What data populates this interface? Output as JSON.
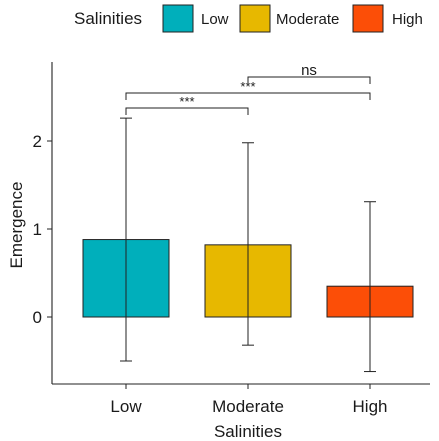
{
  "chart_data": {
    "type": "bar",
    "categories": [
      "Low",
      "Moderate",
      "High"
    ],
    "values": [
      0.88,
      0.82,
      0.35
    ],
    "error_bars": [
      {
        "lower": -0.5,
        "upper": 2.26
      },
      {
        "lower": -0.32,
        "upper": 1.98
      },
      {
        "lower": -0.62,
        "upper": 1.31
      }
    ],
    "colors": [
      "#00AFBB",
      "#E7B800",
      "#FC4E07"
    ],
    "xlabel": "Salinities",
    "ylabel": "Emergence",
    "ylim": [
      -0.75,
      2.75
    ],
    "yticks": [
      0,
      1,
      2
    ],
    "grid": false,
    "legend": {
      "title": "Salinities",
      "placement": "top",
      "entries": [
        "Low",
        "Moderate",
        "High"
      ]
    },
    "significance": [
      {
        "from": "Low",
        "to": "Moderate",
        "label": "***"
      },
      {
        "from": "Low",
        "to": "High",
        "label": "***"
      },
      {
        "from": "Moderate",
        "to": "High",
        "label": "ns"
      }
    ]
  }
}
